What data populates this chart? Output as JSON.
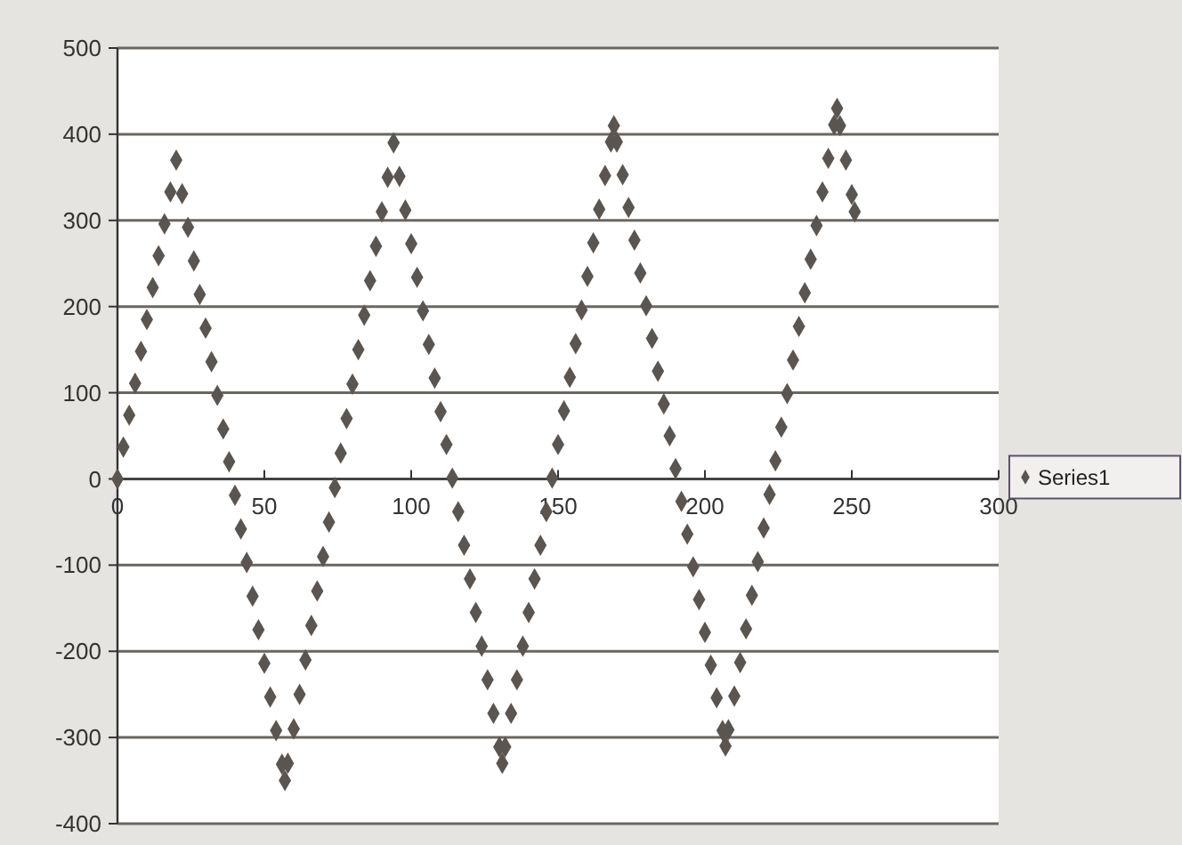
{
  "chart_data": {
    "type": "scatter",
    "x": [
      0,
      2,
      4,
      6,
      8,
      10,
      12,
      14,
      16,
      18,
      20,
      22,
      24,
      26,
      28,
      30,
      32,
      34,
      36,
      38,
      40,
      42,
      44,
      46,
      48,
      50,
      52,
      54,
      56,
      57,
      58,
      60,
      62,
      64,
      66,
      68,
      70,
      72,
      74,
      76,
      78,
      80,
      82,
      84,
      86,
      88,
      90,
      92,
      94,
      96,
      98,
      100,
      102,
      104,
      106,
      108,
      110,
      112,
      114,
      116,
      118,
      120,
      122,
      124,
      126,
      128,
      130,
      131,
      132,
      134,
      136,
      138,
      140,
      142,
      144,
      146,
      148,
      150,
      152,
      154,
      156,
      158,
      160,
      162,
      164,
      166,
      168,
      169,
      170,
      172,
      174,
      176,
      178,
      180,
      182,
      184,
      186,
      188,
      190,
      192,
      194,
      196,
      198,
      200,
      202,
      204,
      206,
      207,
      208,
      210,
      212,
      214,
      216,
      218,
      220,
      222,
      224,
      226,
      228,
      230,
      232,
      234,
      236,
      238,
      240,
      242,
      244,
      245,
      246,
      248,
      250,
      251
    ],
    "series": [
      {
        "name": "Series1",
        "color": "#5a5550",
        "values": [
          0,
          37,
          74,
          111,
          148,
          185,
          222,
          259,
          296,
          333,
          370,
          331,
          292,
          253,
          214,
          175,
          136,
          97,
          58,
          20,
          -19,
          -58,
          -97,
          -136,
          -175,
          -214,
          -253,
          -292,
          -331,
          -350,
          -330,
          -290,
          -250,
          -210,
          -170,
          -130,
          -90,
          -50,
          -10,
          30,
          70,
          110,
          150,
          190,
          230,
          270,
          310,
          350,
          390,
          351,
          312,
          273,
          234,
          195,
          156,
          117,
          78,
          40,
          1,
          -38,
          -77,
          -116,
          -155,
          -194,
          -233,
          -272,
          -311,
          -330,
          -311,
          -272,
          -233,
          -194,
          -155,
          -116,
          -77,
          -38,
          1,
          40,
          79,
          118,
          157,
          196,
          235,
          274,
          313,
          352,
          391,
          410,
          391,
          353,
          315,
          277,
          239,
          201,
          163,
          125,
          87,
          50,
          12,
          -26,
          -64,
          -102,
          -140,
          -178,
          -216,
          -254,
          -292,
          -310,
          -291,
          -252,
          -213,
          -174,
          -135,
          -96,
          -57,
          -18,
          21,
          60,
          99,
          138,
          177,
          216,
          255,
          294,
          333,
          372,
          411,
          430,
          410,
          370,
          330,
          310
        ]
      }
    ],
    "xlim": [
      0,
      300
    ],
    "xticks": [
      0,
      50,
      100,
      150,
      200,
      250,
      300
    ],
    "ylim": [
      -400,
      500
    ],
    "yticks": [
      -400,
      -300,
      -200,
      -100,
      0,
      100,
      200,
      300,
      400,
      500
    ],
    "grid": "y",
    "legend": "right",
    "marker": "diamond"
  }
}
